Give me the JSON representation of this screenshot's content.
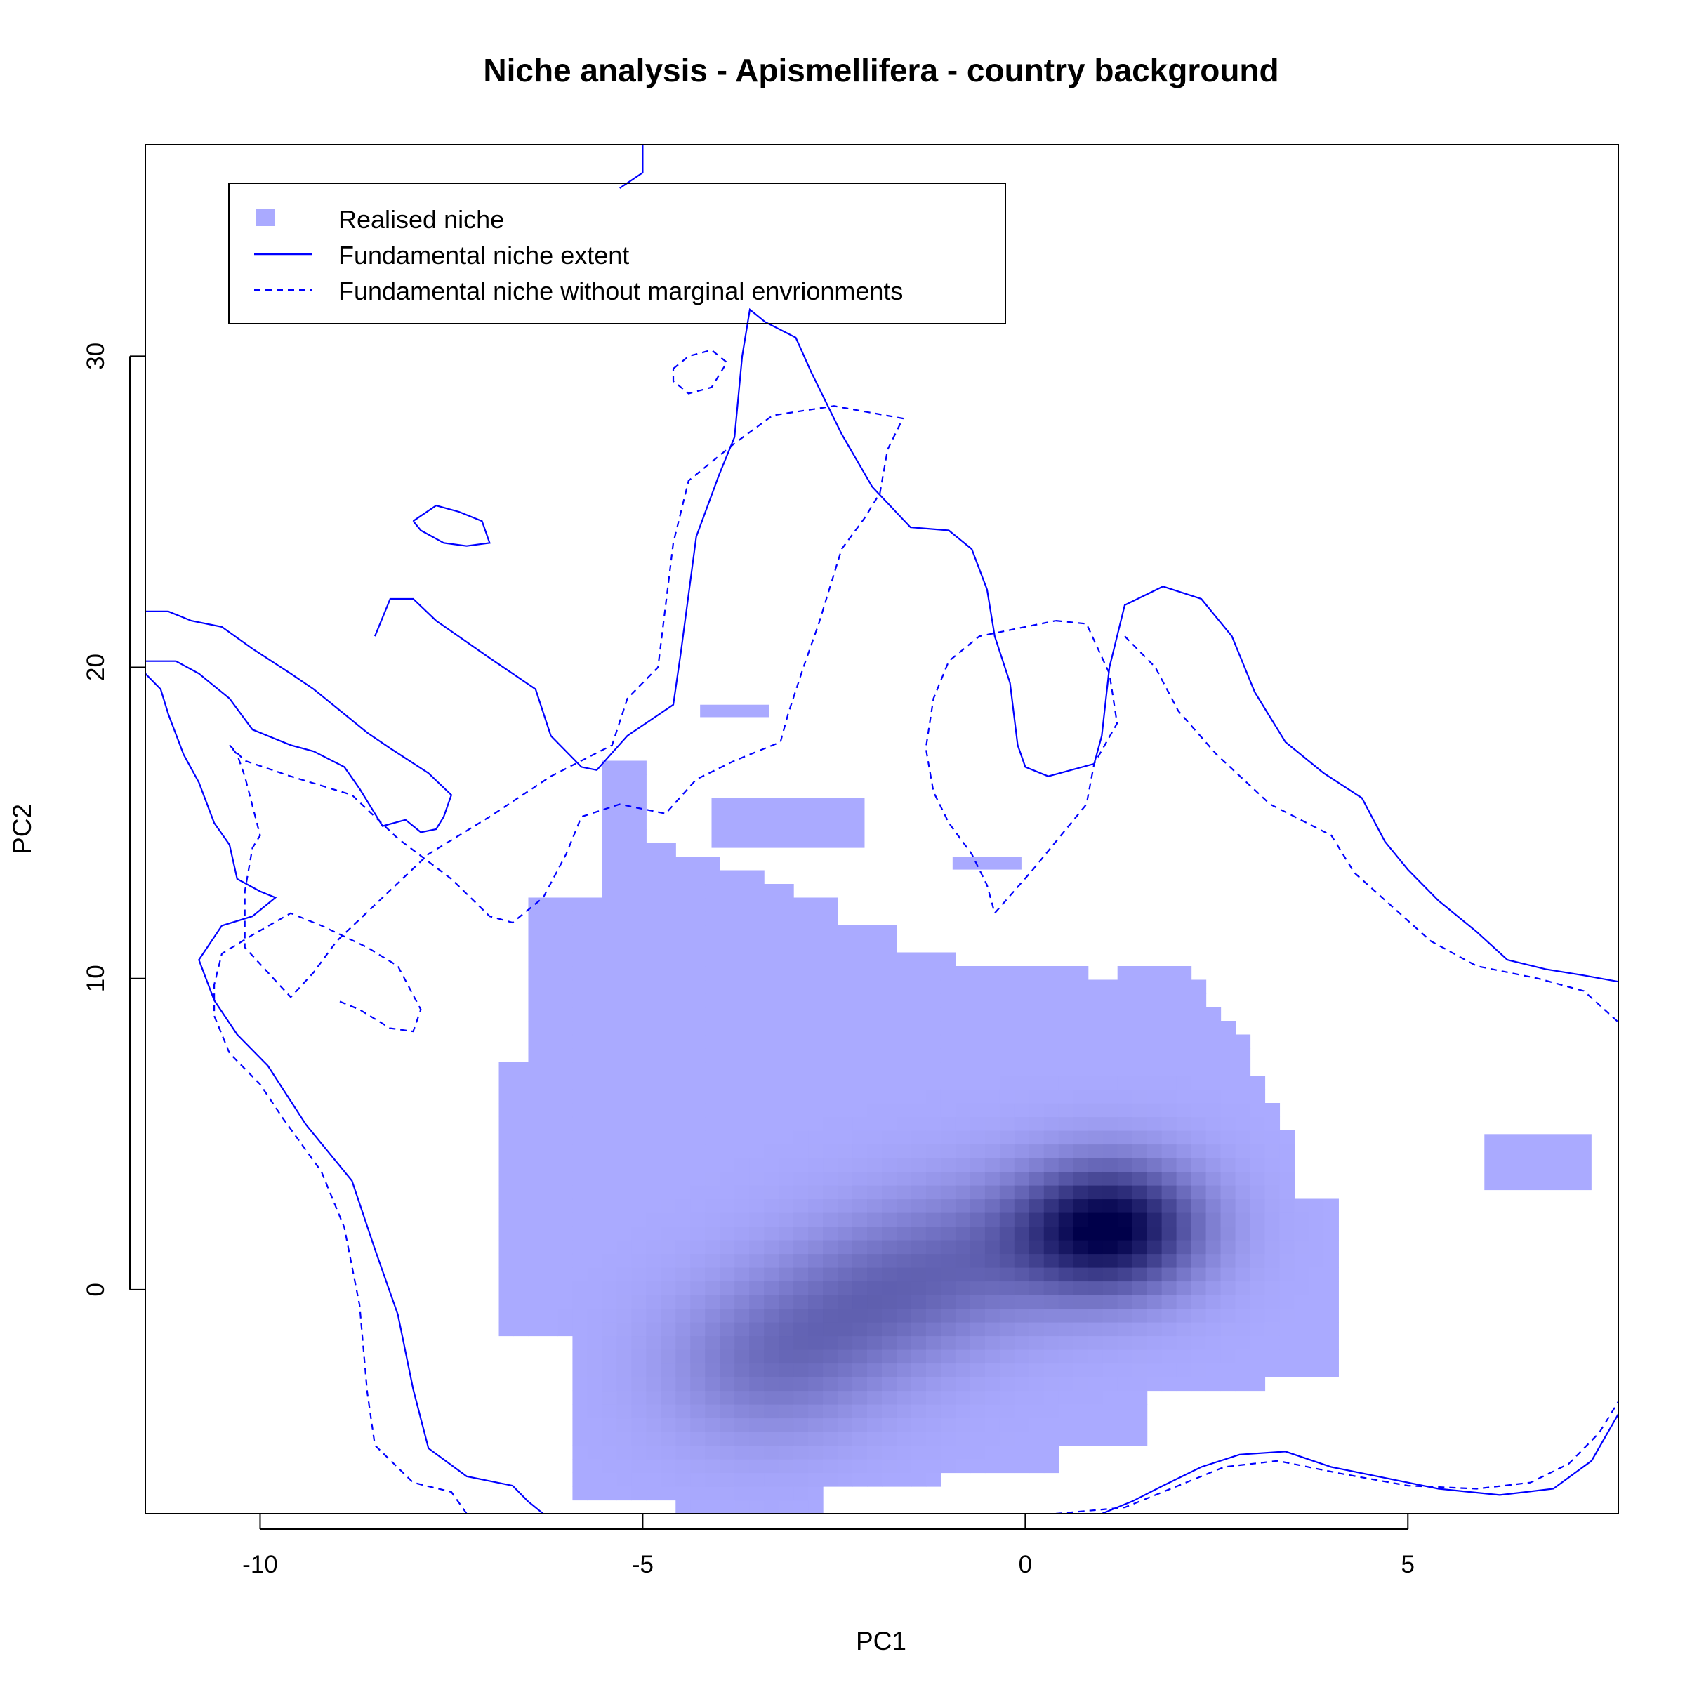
{
  "chart_data": {
    "type": "heatmap",
    "title": "Niche analysis - Apismellifera - country background",
    "xlabel": "PC1",
    "ylabel": "PC2",
    "xlim": [
      -11.5,
      7.75
    ],
    "ylim": [
      -7.2,
      36.8
    ],
    "x_ticks": [
      -10,
      -5,
      0,
      5
    ],
    "y_ticks": [
      0,
      10,
      20,
      30
    ],
    "grid": false,
    "legend_position": "top-left",
    "legend": [
      {
        "label": "Realised niche",
        "kind": "square",
        "color": "#aaaaff"
      },
      {
        "label": "Fundamental niche extent",
        "kind": "line",
        "dash": "solid",
        "color": "#0000ff"
      },
      {
        "label": "Fundamental niche without marginal envrionments",
        "kind": "line",
        "dash": "dashed",
        "color": "#0000ff"
      }
    ],
    "colors": {
      "realised_base": "#aaaaff",
      "realised_peak": "#00004a",
      "contour": "#0000ff"
    },
    "realised_niche": {
      "main_extent_x": [
        -6.9,
        4.0
      ],
      "main_extent_y": [
        -7.2,
        17.0
      ],
      "density_peaks": [
        {
          "x": 1.1,
          "y": 2.0,
          "level": 1.0
        },
        {
          "x": -3.4,
          "y": -2.4,
          "level": 0.35
        },
        {
          "x": -2.1,
          "y": -0.4,
          "level": 0.32
        },
        {
          "x": -0.8,
          "y": 1.0,
          "level": 0.3
        }
      ],
      "outliers": [
        {
          "x": -3.8,
          "y": 18.6
        },
        {
          "x": -3.1,
          "y": 15.0
        },
        {
          "x": -0.5,
          "y": 13.7
        },
        {
          "x": 6.7,
          "y": 4.1
        }
      ]
    },
    "fundamental_niche_extent": [
      [
        [
          -11.5,
          21.8
        ],
        [
          -11.2,
          21.8
        ],
        [
          -10.9,
          21.5
        ],
        [
          -10.5,
          21.3
        ],
        [
          -10.1,
          20.6
        ],
        [
          -9.6,
          19.8
        ],
        [
          -9.3,
          19.3
        ],
        [
          -8.9,
          18.5
        ],
        [
          -8.6,
          17.9
        ],
        [
          -8.3,
          17.4
        ],
        [
          -7.8,
          16.6
        ],
        [
          -7.5,
          15.9
        ],
        [
          -7.6,
          15.2
        ],
        [
          -7.7,
          14.8
        ],
        [
          -7.9,
          14.7
        ],
        [
          -8.1,
          15.1
        ],
        [
          -8.4,
          14.9
        ],
        [
          -8.7,
          16.1
        ],
        [
          -8.9,
          16.8
        ],
        [
          -9.3,
          17.3
        ],
        [
          -9.6,
          17.5
        ],
        [
          -10.1,
          18.0
        ],
        [
          -10.4,
          19.0
        ],
        [
          -10.8,
          19.8
        ],
        [
          -11.1,
          20.2
        ],
        [
          -11.5,
          20.2
        ]
      ],
      [
        [
          -8.5,
          21.0
        ],
        [
          -8.3,
          22.2
        ],
        [
          -8.0,
          22.2
        ],
        [
          -7.7,
          21.5
        ],
        [
          -7.0,
          20.3
        ],
        [
          -6.4,
          19.3
        ],
        [
          -6.2,
          17.8
        ],
        [
          -5.8,
          16.8
        ],
        [
          -5.6,
          16.7
        ],
        [
          -5.2,
          17.8
        ],
        [
          -4.6,
          18.8
        ],
        [
          -4.5,
          20.5
        ],
        [
          -4.3,
          24.2
        ],
        [
          -4.0,
          26.2
        ],
        [
          -3.8,
          27.4
        ],
        [
          -3.7,
          30.0
        ],
        [
          -3.6,
          31.5
        ],
        [
          -3.4,
          31.1
        ],
        [
          -3.0,
          30.6
        ],
        [
          -2.8,
          29.5
        ],
        [
          -2.4,
          27.5
        ],
        [
          -2.0,
          25.8
        ],
        [
          -1.5,
          24.5
        ],
        [
          -1.0,
          24.4
        ],
        [
          -0.7,
          23.8
        ],
        [
          -0.5,
          22.5
        ],
        [
          -0.4,
          21.0
        ],
        [
          -0.2,
          19.5
        ],
        [
          -0.1,
          17.5
        ],
        [
          0.0,
          16.8
        ],
        [
          0.3,
          16.5
        ],
        [
          0.9,
          16.9
        ],
        [
          1.0,
          17.8
        ],
        [
          1.1,
          20.0
        ],
        [
          1.3,
          22.0
        ],
        [
          1.8,
          22.6
        ],
        [
          2.3,
          22.2
        ],
        [
          2.7,
          21.0
        ],
        [
          3.0,
          19.2
        ],
        [
          3.4,
          17.6
        ],
        [
          3.9,
          16.6
        ],
        [
          4.4,
          15.8
        ],
        [
          4.7,
          14.4
        ],
        [
          5.0,
          13.5
        ],
        [
          5.4,
          12.5
        ],
        [
          5.9,
          11.5
        ],
        [
          6.3,
          10.6
        ],
        [
          6.8,
          10.3
        ],
        [
          7.3,
          10.1
        ],
        [
          7.75,
          9.9
        ]
      ],
      [
        [
          -8.0,
          24.7
        ],
        [
          -7.7,
          25.2
        ],
        [
          -7.4,
          25.0
        ],
        [
          -7.1,
          24.7
        ],
        [
          -7.0,
          24.0
        ],
        [
          -7.3,
          23.9
        ],
        [
          -7.6,
          24.0
        ],
        [
          -7.9,
          24.4
        ],
        [
          -8.0,
          24.7
        ]
      ],
      [
        [
          -5.3,
          35.4
        ],
        [
          -5.0,
          35.9
        ],
        [
          -5.0,
          36.8
        ]
      ],
      [
        [
          -11.5,
          19.8
        ],
        [
          -11.3,
          19.3
        ],
        [
          -11.2,
          18.5
        ],
        [
          -11.0,
          17.2
        ],
        [
          -10.8,
          16.3
        ],
        [
          -10.6,
          15.0
        ],
        [
          -10.4,
          14.3
        ],
        [
          -10.3,
          13.2
        ],
        [
          -10.0,
          12.8
        ],
        [
          -9.8,
          12.6
        ],
        [
          -10.1,
          12.0
        ],
        [
          -10.5,
          11.7
        ],
        [
          -10.8,
          10.6
        ],
        [
          -10.6,
          9.3
        ],
        [
          -10.3,
          8.2
        ],
        [
          -9.9,
          7.2
        ],
        [
          -9.4,
          5.3
        ],
        [
          -8.8,
          3.5
        ],
        [
          -8.5,
          1.3
        ],
        [
          -8.2,
          -0.8
        ],
        [
          -8.0,
          -3.2
        ],
        [
          -7.8,
          -5.1
        ],
        [
          -7.3,
          -6.0
        ],
        [
          -6.7,
          -6.3
        ],
        [
          -6.5,
          -6.8
        ],
        [
          -6.3,
          -7.2
        ]
      ],
      [
        [
          1.0,
          -7.2
        ],
        [
          1.4,
          -6.8
        ],
        [
          1.8,
          -6.3
        ],
        [
          2.3,
          -5.7
        ],
        [
          2.8,
          -5.3
        ],
        [
          3.4,
          -5.2
        ],
        [
          4.0,
          -5.7
        ],
        [
          4.6,
          -6.0
        ],
        [
          5.4,
          -6.4
        ],
        [
          6.2,
          -6.6
        ],
        [
          6.9,
          -6.4
        ],
        [
          7.4,
          -5.5
        ],
        [
          7.75,
          -4.0
        ]
      ]
    ],
    "fundamental_niche_core": [
      [
        [
          -10.4,
          17.5
        ],
        [
          -10.2,
          17.0
        ],
        [
          -9.6,
          16.5
        ],
        [
          -8.8,
          15.9
        ],
        [
          -8.2,
          14.5
        ],
        [
          -7.5,
          13.2
        ],
        [
          -7.0,
          12.0
        ],
        [
          -6.7,
          11.8
        ],
        [
          -6.3,
          12.6
        ],
        [
          -6.0,
          14.0
        ],
        [
          -5.8,
          15.2
        ],
        [
          -5.3,
          15.6
        ],
        [
          -4.7,
          15.3
        ],
        [
          -4.3,
          16.4
        ],
        [
          -3.8,
          17.0
        ],
        [
          -3.2,
          17.6
        ],
        [
          -3.1,
          18.5
        ],
        [
          -2.9,
          20.0
        ],
        [
          -2.7,
          21.4
        ],
        [
          -2.4,
          23.8
        ],
        [
          -2.1,
          24.8
        ],
        [
          -1.9,
          25.6
        ],
        [
          -1.8,
          27.0
        ],
        [
          -1.6,
          28.0
        ],
        [
          -2.5,
          28.4
        ],
        [
          -3.3,
          28.1
        ],
        [
          -3.8,
          27.2
        ],
        [
          -4.4,
          26.0
        ],
        [
          -4.6,
          24.0
        ],
        [
          -4.7,
          22.0
        ],
        [
          -4.8,
          20.0
        ],
        [
          -5.2,
          19.0
        ],
        [
          -5.4,
          17.5
        ],
        [
          -6.2,
          16.5
        ],
        [
          -7.0,
          15.2
        ],
        [
          -7.8,
          14.0
        ],
        [
          -8.4,
          12.6
        ],
        [
          -9.0,
          11.2
        ],
        [
          -9.3,
          10.2
        ],
        [
          -9.6,
          9.4
        ],
        [
          -10.2,
          11.0
        ],
        [
          -10.2,
          12.8
        ],
        [
          -10.1,
          14.2
        ],
        [
          -10.0,
          14.6
        ],
        [
          -10.2,
          16.5
        ],
        [
          -10.3,
          17.2
        ],
        [
          -10.4,
          17.5
        ]
      ],
      [
        [
          -4.6,
          29.6
        ],
        [
          -4.4,
          30.0
        ],
        [
          -4.1,
          30.2
        ],
        [
          -3.9,
          29.8
        ],
        [
          -4.1,
          29.0
        ],
        [
          -4.4,
          28.8
        ],
        [
          -4.6,
          29.2
        ],
        [
          -4.6,
          29.6
        ]
      ],
      [
        [
          -7.3,
          -7.2
        ],
        [
          -7.5,
          -6.5
        ],
        [
          -8.0,
          -6.2
        ],
        [
          -8.5,
          -5.0
        ],
        [
          -8.6,
          -3.3
        ],
        [
          -8.7,
          -0.5
        ],
        [
          -8.9,
          2.0
        ],
        [
          -9.2,
          3.8
        ],
        [
          -9.7,
          5.5
        ],
        [
          -10.0,
          6.6
        ],
        [
          -10.4,
          7.6
        ],
        [
          -10.6,
          8.8
        ],
        [
          -10.6,
          9.8
        ],
        [
          -10.5,
          10.8
        ],
        [
          -10.1,
          11.4
        ],
        [
          -9.6,
          12.1
        ],
        [
          -9.2,
          11.7
        ],
        [
          -8.6,
          11.0
        ],
        [
          -8.2,
          10.4
        ],
        [
          -7.9,
          9.0
        ],
        [
          -8.0,
          8.3
        ],
        [
          -8.3,
          8.4
        ],
        [
          -8.7,
          9.0
        ],
        [
          -9.0,
          9.3
        ]
      ],
      [
        [
          0.4,
          21.5
        ],
        [
          0.8,
          21.4
        ],
        [
          1.1,
          19.8
        ],
        [
          1.2,
          18.2
        ],
        [
          0.9,
          16.9
        ],
        [
          0.8,
          15.6
        ],
        [
          0.1,
          13.5
        ],
        [
          -0.4,
          12.1
        ],
        [
          -0.5,
          13.0
        ],
        [
          -0.7,
          14.0
        ],
        [
          -1.0,
          15.0
        ],
        [
          -1.2,
          16.0
        ],
        [
          -1.3,
          17.4
        ],
        [
          -1.2,
          19.0
        ],
        [
          -1.0,
          20.2
        ],
        [
          -0.6,
          21.0
        ],
        [
          0.4,
          21.5
        ]
      ],
      [
        [
          1.3,
          21.0
        ],
        [
          1.7,
          20.0
        ],
        [
          2.0,
          18.6
        ],
        [
          2.5,
          17.2
        ],
        [
          3.2,
          15.6
        ],
        [
          4.0,
          14.6
        ],
        [
          4.3,
          13.4
        ],
        [
          4.8,
          12.3
        ],
        [
          5.3,
          11.2
        ],
        [
          5.9,
          10.4
        ],
        [
          6.7,
          10.0
        ],
        [
          7.3,
          9.6
        ],
        [
          7.75,
          8.6
        ]
      ],
      [
        [
          0.4,
          -7.2
        ],
        [
          1.3,
          -7.0
        ],
        [
          2.0,
          -6.3
        ],
        [
          2.6,
          -5.7
        ],
        [
          3.3,
          -5.5
        ],
        [
          4.1,
          -5.9
        ],
        [
          5.0,
          -6.3
        ],
        [
          5.9,
          -6.4
        ],
        [
          6.6,
          -6.2
        ],
        [
          7.1,
          -5.6
        ],
        [
          7.5,
          -4.6
        ],
        [
          7.75,
          -3.6
        ]
      ]
    ]
  }
}
